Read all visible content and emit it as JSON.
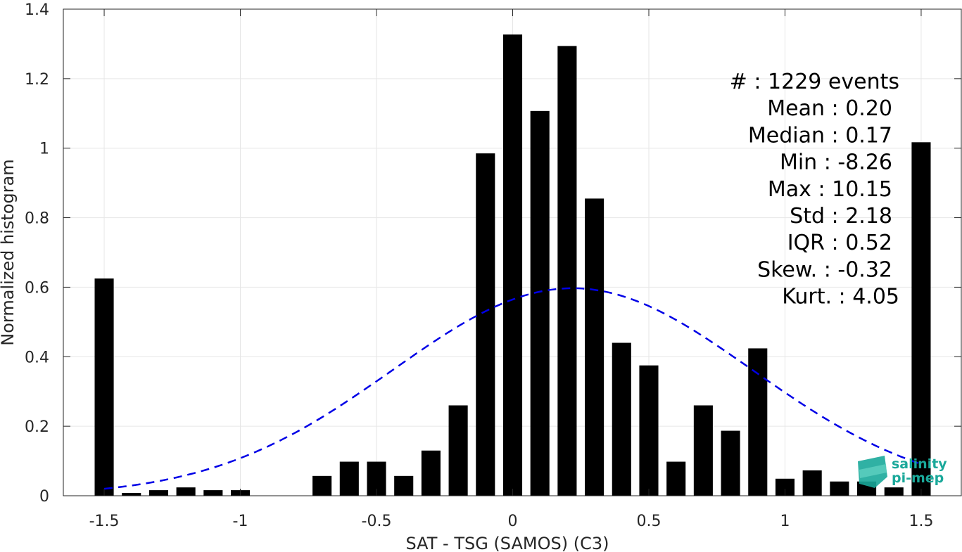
{
  "chart_data": {
    "type": "bar",
    "xlabel": "SAT - TSG (SAMOS) (C3)",
    "ylabel": "Normalized histogram",
    "xlim": [
      -1.65,
      1.65
    ],
    "ylim": [
      0,
      1.4
    ],
    "xticks": [
      "-1.5",
      "-1",
      "-0.5",
      "0",
      "0.5",
      "1",
      "1.5"
    ],
    "xtick_values": [
      -1.5,
      -1,
      -0.5,
      0,
      0.5,
      1,
      1.5
    ],
    "yticks": [
      "0",
      "0.2",
      "0.4",
      "0.6",
      "0.8",
      "1",
      "1.2",
      "1.4"
    ],
    "ytick_values": [
      0,
      0.2,
      0.4,
      0.6,
      0.8,
      1,
      1.2,
      1.4
    ],
    "grid": true,
    "bar_color": "#000000",
    "bin_width": 0.1,
    "bars": {
      "x": [
        -1.5,
        -1.4,
        -1.3,
        -1.2,
        -1.1,
        -1.0,
        -0.9,
        -0.8,
        -0.7,
        -0.6,
        -0.5,
        -0.4,
        -0.3,
        -0.2,
        -0.1,
        0.0,
        0.1,
        0.2,
        0.3,
        0.4,
        0.5,
        0.6,
        0.7,
        0.8,
        0.9,
        1.0,
        1.1,
        1.2,
        1.3,
        1.4,
        1.5
      ],
      "values": [
        0.625,
        0.008,
        0.016,
        0.024,
        0.016,
        0.016,
        0.0,
        0.0,
        0.057,
        0.098,
        0.098,
        0.057,
        0.13,
        0.26,
        0.985,
        1.327,
        1.107,
        1.294,
        0.855,
        0.44,
        0.375,
        0.098,
        0.26,
        0.187,
        0.424,
        0.049,
        0.073,
        0.041,
        0.041,
        0.024,
        1.017
      ]
    },
    "fit_curve": {
      "type": "gaussian",
      "style": "dashed",
      "color": "#0000e6",
      "mean": 0.22,
      "peak": 0.597,
      "sigma": 0.66,
      "x_range": [
        -1.5,
        1.5
      ]
    },
    "stats": [
      "#  : 1229 events",
      "Mean : 0.20",
      "Median : 0.17",
      "Min : -8.26",
      "Max : 10.15",
      "Std : 2.18",
      "IQR : 0.52",
      "Skew. : -0.32",
      "Kurt. : 4.05"
    ]
  },
  "logo": {
    "line1": "salinity",
    "line2": "pi-mep",
    "color": "#1aa89a"
  }
}
